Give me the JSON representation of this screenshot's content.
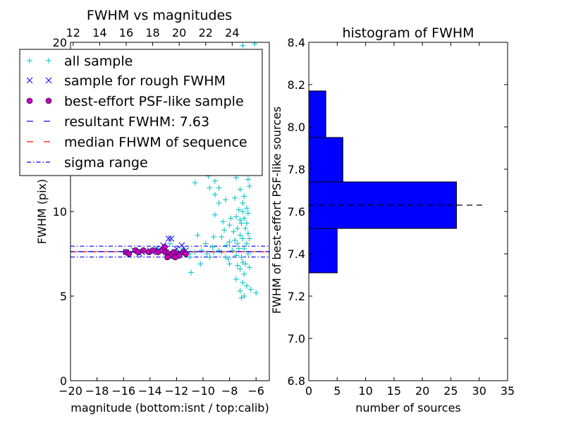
{
  "chart_data": [
    {
      "type": "scatter",
      "title": "FWHM vs magnitudes",
      "xlabel": "magnitude (bottom:isnt / top:calib)",
      "ylabel": "FWHM (pix)",
      "xlim": [
        -20,
        -5
      ],
      "ylim": [
        0,
        20
      ],
      "x_ticks": [
        "−20",
        "−18",
        "−16",
        "−14",
        "−12",
        "−10",
        "−8",
        "−6"
      ],
      "y_ticks": [
        "0",
        "5",
        "10",
        "15",
        "20"
      ],
      "top_axis": {
        "ticks": [
          "12",
          "14",
          "16",
          "18",
          "20",
          "22",
          "24"
        ],
        "offset": 31.8
      },
      "legend_position": "upper-left",
      "series": [
        {
          "name": "all sample",
          "marker": "plus",
          "color": "#00bfbf",
          "points": [
            [
              -7.0,
              19.8
            ],
            [
              -6.1,
              19.9
            ],
            [
              -7.3,
              18.9
            ],
            [
              -7.6,
              17.8
            ],
            [
              -6.8,
              17.2
            ],
            [
              -7.2,
              16.5
            ],
            [
              -8.0,
              15.9
            ],
            [
              -6.5,
              15.4
            ],
            [
              -7.4,
              15.0
            ],
            [
              -8.4,
              14.8
            ],
            [
              -6.9,
              14.3
            ],
            [
              -7.7,
              13.9
            ],
            [
              -6.3,
              13.5
            ],
            [
              -7.1,
              13.2
            ],
            [
              -8.6,
              12.9
            ],
            [
              -9.4,
              13.3
            ],
            [
              -9.6,
              12.1
            ],
            [
              -10.6,
              11.7
            ],
            [
              -9.1,
              11.8
            ],
            [
              -8.0,
              12.4
            ],
            [
              -7.5,
              12.0
            ],
            [
              -6.6,
              11.9
            ],
            [
              -9.5,
              11.4
            ],
            [
              -8.8,
              11.4
            ],
            [
              -7.2,
              11.3
            ],
            [
              -6.5,
              11.5
            ],
            [
              -9.1,
              11.0
            ],
            [
              -8.3,
              10.7
            ],
            [
              -7.6,
              10.8
            ],
            [
              -6.9,
              10.9
            ],
            [
              -8.8,
              10.5
            ],
            [
              -7.0,
              10.5
            ],
            [
              -6.7,
              10.2
            ],
            [
              -7.3,
              10.1
            ],
            [
              -7.0,
              10.0
            ],
            [
              -6.6,
              9.9
            ],
            [
              -9.1,
              9.8
            ],
            [
              -7.5,
              9.7
            ],
            [
              -7.9,
              9.6
            ],
            [
              -6.9,
              9.6
            ],
            [
              -7.2,
              9.5
            ],
            [
              -8.5,
              9.4
            ],
            [
              -7.1,
              9.3
            ],
            [
              -6.7,
              9.3
            ],
            [
              -8.0,
              9.2
            ],
            [
              -7.4,
              9.0
            ],
            [
              -6.8,
              9.0
            ],
            [
              -8.4,
              8.9
            ],
            [
              -7.7,
              8.8
            ],
            [
              -6.6,
              8.7
            ],
            [
              -7.2,
              8.6
            ],
            [
              -8.6,
              8.5
            ],
            [
              -9.2,
              8.5
            ],
            [
              -7.0,
              8.4
            ],
            [
              -6.5,
              8.4
            ],
            [
              -7.6,
              8.3
            ],
            [
              -8.0,
              8.2
            ],
            [
              -7.4,
              8.1
            ],
            [
              -6.7,
              8.1
            ],
            [
              -8.2,
              8.0
            ],
            [
              -9.3,
              7.9
            ],
            [
              -7.3,
              7.8
            ],
            [
              -6.9,
              7.8
            ],
            [
              -7.8,
              7.7
            ],
            [
              -8.6,
              7.6
            ],
            [
              -6.6,
              7.5
            ],
            [
              -7.5,
              7.4
            ],
            [
              -7.1,
              7.3
            ],
            [
              -8.1,
              7.2
            ],
            [
              -7.0,
              7.0
            ],
            [
              -6.8,
              6.9
            ],
            [
              -7.4,
              6.8
            ],
            [
              -6.5,
              6.7
            ],
            [
              -7.2,
              6.6
            ],
            [
              -6.9,
              6.3
            ],
            [
              -7.5,
              6.0
            ],
            [
              -7.0,
              5.8
            ],
            [
              -6.7,
              5.6
            ],
            [
              -7.2,
              5.3
            ],
            [
              -6.9,
              5.0
            ],
            [
              -7.1,
              4.9
            ],
            [
              -6.0,
              5.2
            ],
            [
              -6.4,
              5.4
            ],
            [
              -10.6,
              7.6
            ],
            [
              -10.1,
              7.7
            ],
            [
              -9.7,
              7.5
            ],
            [
              -9.2,
              7.6
            ],
            [
              -8.8,
              7.7
            ],
            [
              -11.0,
              7.5
            ],
            [
              -10.9,
              6.4
            ],
            [
              -10.2,
              6.9
            ],
            [
              -10.4,
              8.6
            ],
            [
              -9.8,
              8.1
            ],
            [
              -12.0,
              7.6
            ],
            [
              -13.0,
              7.7
            ],
            [
              -14.0,
              7.6
            ],
            [
              -15.0,
              7.7
            ],
            [
              -16.0,
              7.6
            ],
            [
              -12.5,
              8.1
            ],
            [
              -13.5,
              7.8
            ],
            [
              -11.5,
              7.8
            ],
            [
              -11.0,
              7.3
            ],
            [
              -9.5,
              7.3
            ],
            [
              -8.3,
              7.3
            ],
            [
              -8.0,
              6.9
            ]
          ]
        },
        {
          "name": "sample for rough FWHM",
          "marker": "x",
          "color": "#0000ff",
          "points": [
            [
              -15.8,
              7.6
            ],
            [
              -15.2,
              7.7
            ],
            [
              -14.6,
              7.6
            ],
            [
              -14.0,
              7.7
            ],
            [
              -13.5,
              7.8
            ],
            [
              -13.0,
              8.0
            ],
            [
              -12.6,
              8.4
            ],
            [
              -12.4,
              8.4
            ],
            [
              -12.0,
              7.8
            ],
            [
              -11.6,
              8.0
            ],
            [
              -11.3,
              7.7
            ],
            [
              -12.8,
              7.6
            ],
            [
              -13.8,
              7.6
            ],
            [
              -14.8,
              7.5
            ]
          ]
        },
        {
          "name": "best-effort PSF-like sample",
          "marker": "circle",
          "color": "#bf00bf",
          "points": [
            [
              -15.8,
              7.6
            ],
            [
              -15.6,
              7.5
            ],
            [
              -15.1,
              7.7
            ],
            [
              -14.9,
              7.6
            ],
            [
              -14.5,
              7.7
            ],
            [
              -14.1,
              7.6
            ],
            [
              -13.8,
              7.7
            ],
            [
              -13.4,
              7.6
            ],
            [
              -13.1,
              7.7
            ],
            [
              -12.8,
              7.6
            ],
            [
              -12.9,
              7.9
            ],
            [
              -12.6,
              7.5
            ],
            [
              -12.4,
              7.4
            ],
            [
              -12.2,
              7.6
            ],
            [
              -12.0,
              7.5
            ],
            [
              -11.8,
              7.4
            ],
            [
              -11.5,
              7.6
            ],
            [
              -11.3,
              7.5
            ],
            [
              -12.7,
              7.3
            ],
            [
              -12.1,
              7.3
            ]
          ]
        }
      ],
      "hlines": [
        {
          "name": "resultant FWHM: 7.63",
          "value": 7.63,
          "color": "#0000ff",
          "style": "dashed"
        },
        {
          "name": "median FHWM of sequence",
          "value": 7.62,
          "color": "#ff0000",
          "style": "dashed"
        },
        {
          "name": "sigma range",
          "values": [
            7.95,
            7.31
          ],
          "color": "#0000ff",
          "style": "dashdot"
        }
      ]
    },
    {
      "type": "bar",
      "orientation": "horizontal",
      "title": "histogram of FWHM",
      "xlabel": "number of sources",
      "ylabel": "FWHM of best-effort PSF-like sources",
      "xlim": [
        0,
        35
      ],
      "ylim": [
        6.8,
        8.4
      ],
      "x_ticks": [
        "0",
        "5",
        "10",
        "15",
        "20",
        "25",
        "30",
        "35"
      ],
      "y_ticks": [
        "6.8",
        "7.0",
        "7.2",
        "7.4",
        "7.6",
        "7.8",
        "8.0",
        "8.2",
        "8.4"
      ],
      "bar_color": "#0000ff",
      "bins": [
        {
          "from": 7.31,
          "to": 7.52,
          "count": 5
        },
        {
          "from": 7.52,
          "to": 7.74,
          "count": 26
        },
        {
          "from": 7.74,
          "to": 7.95,
          "count": 6
        },
        {
          "from": 7.95,
          "to": 8.17,
          "count": 3
        }
      ],
      "reference_line": {
        "value": 7.63,
        "color": "#000000",
        "style": "dashed",
        "x_range": [
          0,
          31
        ]
      }
    }
  ]
}
